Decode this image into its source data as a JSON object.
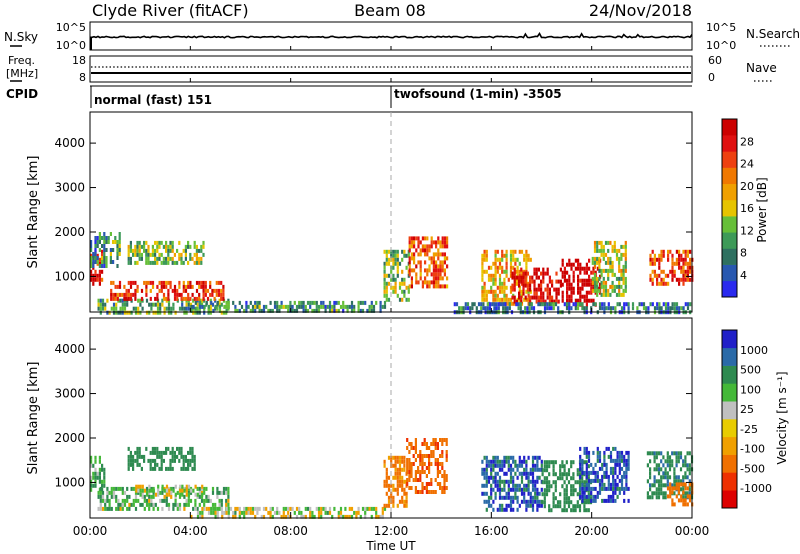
{
  "header": {
    "station": "Clyde River (fitACF)",
    "beam": "Beam 08",
    "date": "24/Nov/2018"
  },
  "top_panels": {
    "nsky_label": "N.Sky",
    "nsearch_label": "N.Search",
    "nsky_ticks": [
      "10^5",
      "10^0"
    ],
    "nsearch_ticks": [
      "10^5",
      "10^0"
    ],
    "freq_label_1": "Freq.",
    "freq_label_2": "[MHz]",
    "freq_ticks": [
      "18",
      "8"
    ],
    "nave_label": "Nave",
    "nave_ticks": [
      "60",
      "0"
    ],
    "cpid_label": "CPID",
    "cpid_segments": [
      {
        "text": "normal (fast) 151",
        "start_hour": 0
      },
      {
        "text": "twofsound (1-min) -3505",
        "start_hour": 12
      }
    ]
  },
  "x_axis": {
    "label": "Time UT",
    "ticks": [
      "00:00",
      "04:00",
      "08:00",
      "12:00",
      "16:00",
      "20:00",
      "00:00"
    ],
    "tick_hours": [
      0,
      4,
      8,
      12,
      16,
      20,
      24
    ]
  },
  "y_axis": {
    "label": "Slant Range [km]",
    "ticks": [
      "1000",
      "2000",
      "3000",
      "4000"
    ],
    "tick_values": [
      1000,
      2000,
      3000,
      4000
    ],
    "range_km": [
      200,
      4700
    ]
  },
  "power_scale": {
    "label": "Power [dB]",
    "tick_labels": [
      "4",
      "8",
      "12",
      "16",
      "20",
      "24",
      "28"
    ],
    "colors_bottom_to_top": [
      "#2a2aee",
      "#2858b0",
      "#2e7060",
      "#3d9a58",
      "#66bf38",
      "#e6c400",
      "#f0a000",
      "#f07800",
      "#ee4010",
      "#e01010",
      "#cc0000"
    ]
  },
  "velocity_scale": {
    "label": "Velocity [m s⁻¹]",
    "tick_labels": [
      "1000",
      "500",
      "100",
      "25",
      "-25",
      "-100",
      "-500",
      "-1000"
    ],
    "colors_bottom_to_top": [
      "#dd0000",
      "#ee3000",
      "#f07000",
      "#f0a000",
      "#e8cc00",
      "#c0c0c0",
      "#44b838",
      "#2e8a50",
      "#2a6aa8",
      "#2020c8"
    ]
  },
  "chart_data": [
    {
      "type": "heatmap",
      "title": "Power [dB]",
      "xlabel": "Time UT",
      "ylabel": "Slant Range [km]",
      "xlim_hours": [
        0,
        24
      ],
      "ylim_km": [
        200,
        4700
      ],
      "value_range": [
        0,
        30
      ],
      "regions": [
        {
          "t": [
            0.0,
            0.5
          ],
          "r": [
            800,
            1600
          ],
          "v": 26
        },
        {
          "t": [
            0.0,
            1.2
          ],
          "r": [
            1200,
            2000
          ],
          "v": 8
        },
        {
          "t": [
            0.3,
            5.5
          ],
          "r": [
            200,
            500
          ],
          "v": 10
        },
        {
          "t": [
            0.8,
            5.3
          ],
          "r": [
            500,
            900
          ],
          "v": 24
        },
        {
          "t": [
            1.5,
            4.5
          ],
          "r": [
            1300,
            1800
          ],
          "v": 12
        },
        {
          "t": [
            4.0,
            11.8
          ],
          "r": [
            200,
            450
          ],
          "v": 8
        },
        {
          "t": [
            11.7,
            12.7
          ],
          "r": [
            500,
            1600
          ],
          "v": 12
        },
        {
          "t": [
            12.7,
            14.2
          ],
          "r": [
            800,
            1900
          ],
          "v": 22
        },
        {
          "t": [
            15.6,
            17.6
          ],
          "r": [
            400,
            1600
          ],
          "v": 18
        },
        {
          "t": [
            16.8,
            18.8
          ],
          "r": [
            400,
            1200
          ],
          "v": 28
        },
        {
          "t": [
            18.8,
            20.3
          ],
          "r": [
            400,
            1400
          ],
          "v": 30
        },
        {
          "t": [
            20.0,
            21.4
          ],
          "r": [
            600,
            1800
          ],
          "v": 14
        },
        {
          "t": [
            22.3,
            24.0
          ],
          "r": [
            800,
            1600
          ],
          "v": 24
        },
        {
          "t": [
            14.5,
            24.0
          ],
          "r": [
            200,
            420
          ],
          "v": 6
        }
      ]
    },
    {
      "type": "heatmap",
      "title": "Velocity [m s⁻¹]",
      "xlabel": "Time UT",
      "ylabel": "Slant Range [km]",
      "xlim_hours": [
        0,
        24
      ],
      "ylim_km": [
        200,
        4700
      ],
      "value_range": [
        -1000,
        1000
      ],
      "regions": [
        {
          "t": [
            0.0,
            0.6
          ],
          "r": [
            800,
            1600
          ],
          "v": 100
        },
        {
          "t": [
            1.5,
            4.2
          ],
          "r": [
            1300,
            1800
          ],
          "v": 300
        },
        {
          "t": [
            0.3,
            5.5
          ],
          "r": [
            400,
            900
          ],
          "v": 60
        },
        {
          "t": [
            1.8,
            4.5
          ],
          "r": [
            700,
            950
          ],
          "v": 0
        },
        {
          "t": [
            4.0,
            11.8
          ],
          "r": [
            200,
            450
          ],
          "v": 5
        },
        {
          "t": [
            11.7,
            12.6
          ],
          "r": [
            500,
            1600
          ],
          "v": -150
        },
        {
          "t": [
            12.6,
            14.2
          ],
          "r": [
            800,
            2000
          ],
          "v": -400
        },
        {
          "t": [
            15.6,
            18.0
          ],
          "r": [
            400,
            1600
          ],
          "v": 700
        },
        {
          "t": [
            18.0,
            20.0
          ],
          "r": [
            400,
            1500
          ],
          "v": 200
        },
        {
          "t": [
            19.5,
            21.5
          ],
          "r": [
            600,
            1800
          ],
          "v": 800
        },
        {
          "t": [
            22.2,
            24.0
          ],
          "r": [
            700,
            1700
          ],
          "v": 400
        },
        {
          "t": [
            23.0,
            24.0
          ],
          "r": [
            500,
            1000
          ],
          "v": -300
        }
      ]
    }
  ]
}
